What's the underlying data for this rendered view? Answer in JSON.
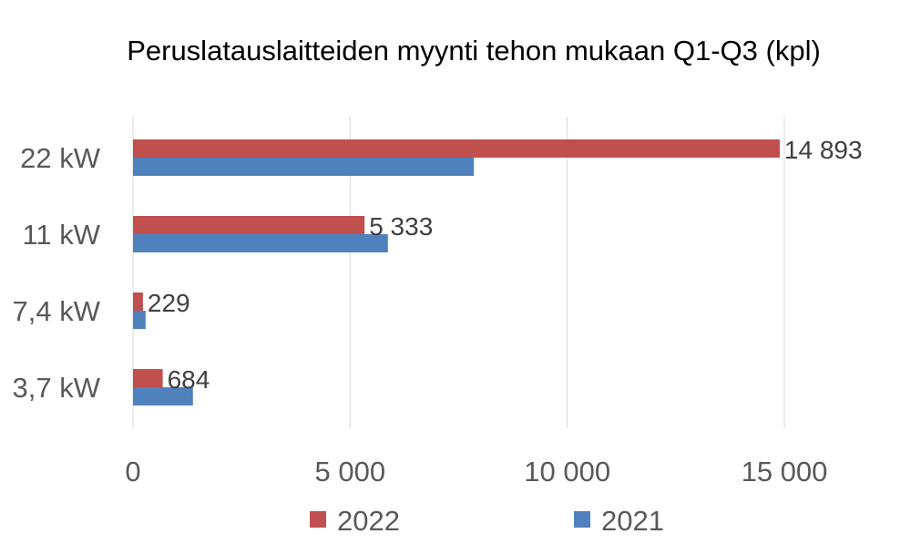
{
  "chart_data": {
    "type": "bar",
    "orientation": "horizontal",
    "title": "Peruslatauslaitteiden myynti tehon mukaan Q1-Q3 (kpl)",
    "categories": [
      "22 kW",
      "11 kW",
      "7,4 kW",
      "3,7 kW"
    ],
    "series": [
      {
        "name": "2022",
        "color": "#c0504d",
        "values": [
          14893,
          5333,
          229,
          684
        ],
        "data_labels": [
          "14 893",
          "5 333",
          "229",
          "684"
        ]
      },
      {
        "name": "2021",
        "color": "#4f81bd",
        "values": [
          7850,
          5870,
          290,
          1380
        ]
      }
    ],
    "xlim": [
      0,
      15000
    ],
    "x_ticks": [
      0,
      5000,
      10000,
      15000
    ],
    "x_tick_labels": [
      "0",
      "5 000",
      "10 000",
      "15 000"
    ],
    "grid": true,
    "legend_position": "bottom"
  }
}
